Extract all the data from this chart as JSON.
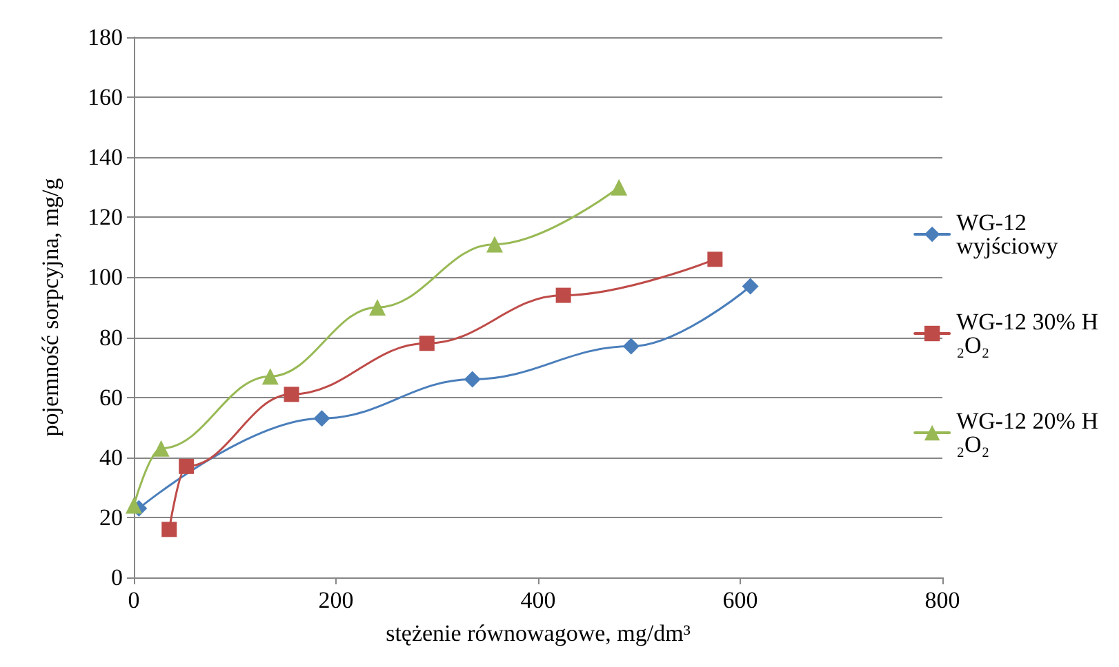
{
  "chart_data": {
    "type": "line",
    "xlabel": "stężenie równowagowe, mg/dm³",
    "ylabel": "pojemność sorpcyjna, mg/g",
    "xlim": [
      0,
      800
    ],
    "xticks": [
      0,
      200,
      400,
      600,
      800
    ],
    "ylim": [
      0,
      180
    ],
    "yticks": [
      0,
      20,
      40,
      60,
      80,
      100,
      120,
      140,
      160,
      180
    ],
    "grid": "y",
    "legend": "right",
    "series": [
      {
        "name": "WG-12 wyjściowy",
        "color": "#4a7ebb",
        "marker": "diamond",
        "x": [
          5,
          186,
          335,
          492,
          610
        ],
        "values": [
          23,
          53,
          66,
          77,
          97
        ]
      },
      {
        "name": "WG-12 30% H₂O₂",
        "color": "#be4b48",
        "marker": "square",
        "x": [
          35,
          52,
          156,
          290,
          425,
          575
        ],
        "values": [
          16,
          37,
          61,
          78,
          94,
          106
        ]
      },
      {
        "name": "WG-12 20% H₂O₂",
        "color": "#98b954",
        "marker": "triangle",
        "x": [
          0,
          27,
          135,
          241,
          357,
          480
        ],
        "values": [
          24,
          43,
          67,
          90,
          111,
          130
        ]
      }
    ]
  }
}
